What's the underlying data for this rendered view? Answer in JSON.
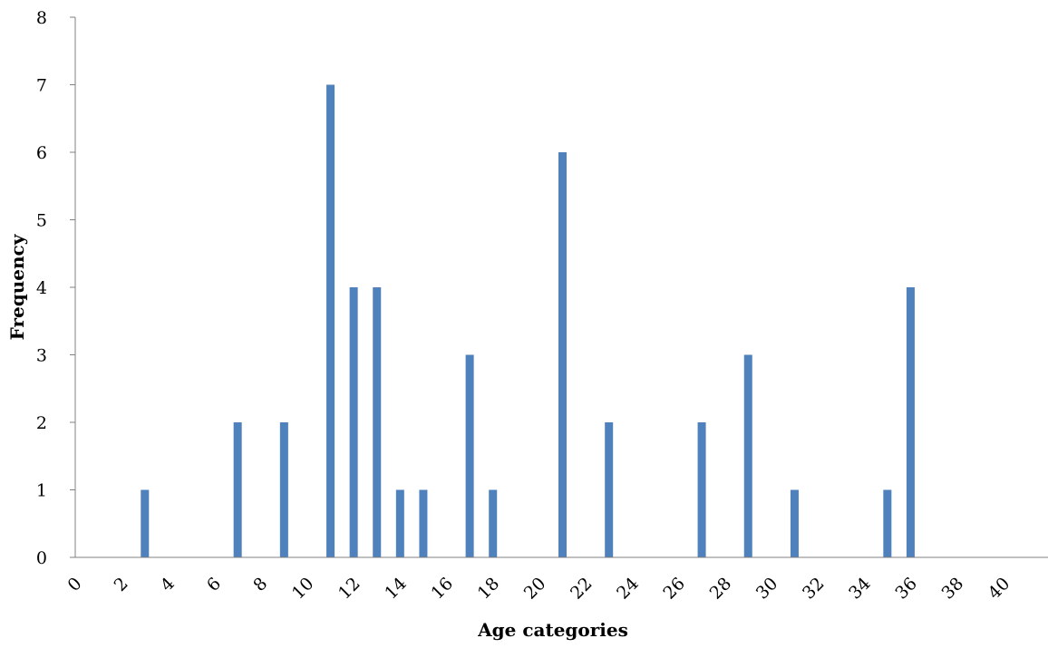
{
  "chart_data": {
    "type": "bar",
    "xlabel": "Age categories",
    "ylabel": "Frequency",
    "ylim": [
      0,
      8
    ],
    "y_ticks": [
      0,
      1,
      2,
      3,
      4,
      5,
      6,
      7,
      8
    ],
    "xlim": [
      0,
      42
    ],
    "x_ticks": [
      0,
      2,
      4,
      6,
      8,
      10,
      12,
      14,
      16,
      18,
      20,
      22,
      24,
      26,
      28,
      30,
      32,
      34,
      36,
      38,
      40
    ],
    "x": [
      3,
      7,
      9,
      11,
      12,
      13,
      14,
      15,
      17,
      18,
      21,
      23,
      27,
      29,
      31,
      35,
      36
    ],
    "values": [
      1,
      2,
      2,
      7,
      4,
      4,
      1,
      1,
      3,
      1,
      6,
      2,
      2,
      3,
      1,
      1,
      4
    ],
    "grid": false,
    "legend": "none",
    "bar_color": "#4F81BD",
    "axis_color": "#808080"
  }
}
